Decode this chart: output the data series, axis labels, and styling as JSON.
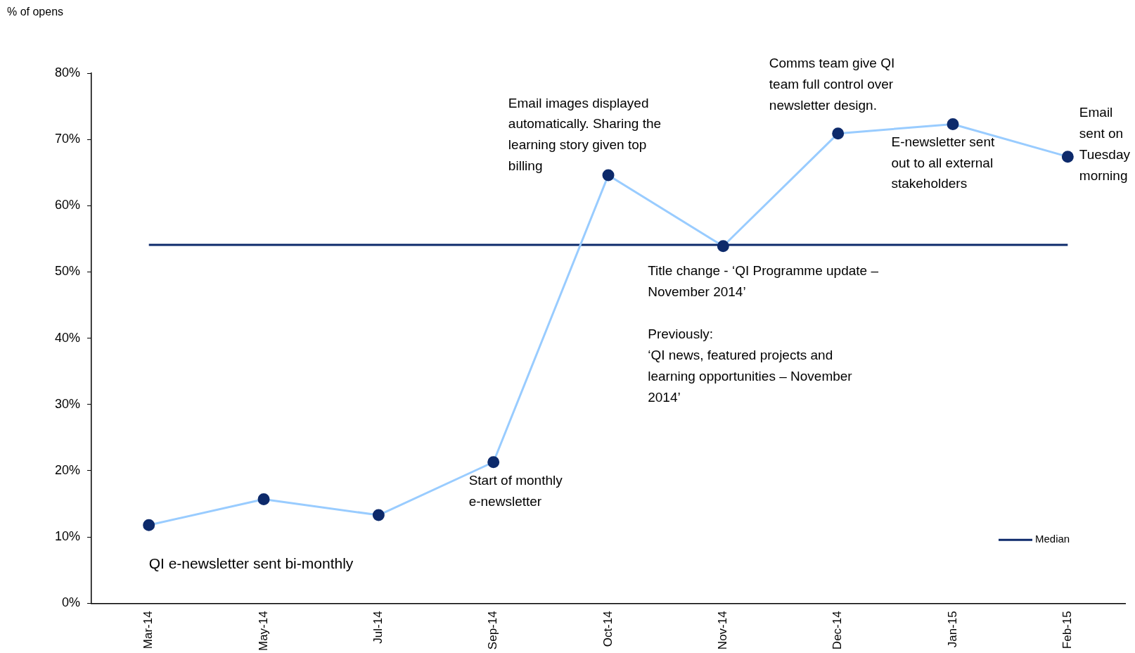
{
  "chart_data": {
    "type": "line",
    "ylabel": "% of opens",
    "categories": [
      "Mar-14",
      "May-14",
      "Jul-14",
      "Sep-14",
      "Oct-14",
      "Nov-14",
      "Dec-14",
      "Jan-15",
      "Feb-15"
    ],
    "series": [
      {
        "color": "#99ccff",
        "colors": [
          "#0d2a6b",
          "#0d2a6b",
          "#0d2a6b",
          "#0d2a6b",
          "#0d2a6b",
          "#0d2a6b",
          "#0d2a6b",
          "#0d2a6b",
          "#0d2a6b"
        ],
        "values": [
          11.8,
          15.7,
          13.3,
          21.3,
          64.6,
          53.9,
          70.9,
          72.3,
          67.4
        ],
        "marker": "circle"
      },
      {
        "name": "Median",
        "type": "line",
        "color": "#0d2a6b",
        "values": [
          54.1,
          54.1,
          54.1,
          54.1,
          54.1,
          54.1,
          54.1,
          54.1,
          54.1
        ],
        "marker": "none"
      }
    ],
    "ylim": [
      0,
      80
    ],
    "yticks": [
      {
        "value": 0,
        "label": "0%"
      },
      {
        "value": 10,
        "label": "10%"
      },
      {
        "value": 20,
        "label": "20%"
      },
      {
        "value": 30,
        "label": "30%"
      },
      {
        "value": 40,
        "label": "40%"
      },
      {
        "value": 50,
        "label": "50%"
      },
      {
        "value": 60,
        "label": "60%"
      },
      {
        "value": 70,
        "label": "70%"
      },
      {
        "value": 80,
        "label": "80%"
      }
    ],
    "grid": false,
    "legend": "bottom right",
    "line_style": "solid",
    "annotations": [
      {
        "text": "QI e-newsletter sent bi-monthly",
        "x": "Mar-14",
        "y": 11.8
      },
      {
        "text": "Start of monthly\ne-newsletter",
        "x": "Sep-14",
        "y": 21.3
      },
      {
        "text": "Email images displayed\nautomatically. Sharing the\nlearning story given top\nbilling",
        "x": "Oct-14",
        "y": 64.6
      },
      {
        "text": "Title change - ‘QI Programme update –\nNovember 2014’",
        "x": "Nov-14",
        "y": 53.9
      },
      "Previously:\n‘QI news, featured projects and\nlearning opportunities – November\n2014’",
      {
        "text": "Comms team give QI\nteam full control over\nnewsletter design.",
        "x": "Dec-14",
        "y": 70.9
      },
      {
        "text": "E-newsletter sent\nout to all external\nstakeholders",
        "x": "Jan-15",
        "y": 72.3
      },
      {
        "text": "Email\nsent on\nTuesday\nmorning",
        "x": "Feb-15",
        "y": 67.4
      }
    ]
  }
}
